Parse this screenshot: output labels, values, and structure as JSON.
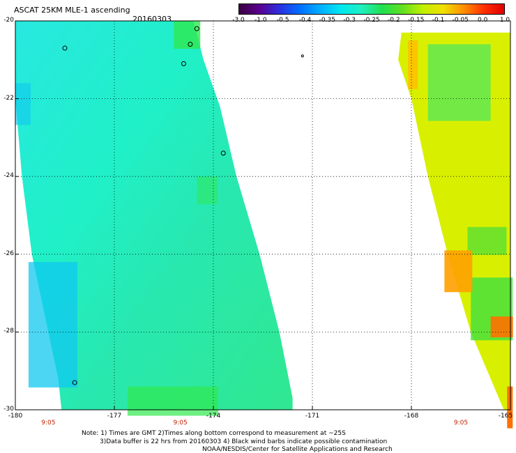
{
  "header": {
    "title": "ASCAT 25KM MLE-1 ascending",
    "date": "20160303"
  },
  "colorbar": {
    "ticks": [
      "-3.0",
      "-1.0",
      "-0.5",
      "-0.4",
      "-0.35",
      "-0.3",
      "-0.25",
      "-0.2",
      "-0.15",
      "-0.1",
      "-0.05",
      "0.0",
      "1.0"
    ],
    "colors": [
      "#3a0040",
      "#5a0090",
      "#2a30e0",
      "#0070ff",
      "#00b0ff",
      "#00e8f0",
      "#20f0c0",
      "#20e050",
      "#60e020",
      "#c0f000",
      "#f0e000",
      "#ff9000",
      "#ff3000",
      "#e00000"
    ]
  },
  "map": {
    "lat_labels": [
      "-20",
      "-22",
      "-24",
      "-26",
      "-28",
      "-30"
    ],
    "lon_labels": [
      "-180",
      "-177",
      "-174",
      "-171",
      "-168",
      "-165"
    ],
    "lat_range": [
      -30,
      -20
    ],
    "lon_range": [
      -180,
      -165
    ],
    "time_labels": [
      "9:05",
      "9:05",
      "9:05"
    ],
    "time_lons": [
      -179,
      -175,
      -166.5
    ]
  },
  "notes": {
    "line1": "Note: 1) Times are GMT 2)Times along bottom correspond to measurement at ~25S",
    "line2": "3)Data buffer is 22 hrs from 20160303 4) Black wind barbs indicate possible contamination",
    "line3": "NOAA/NESDIS/Center for Satellite Applications and Research"
  }
}
